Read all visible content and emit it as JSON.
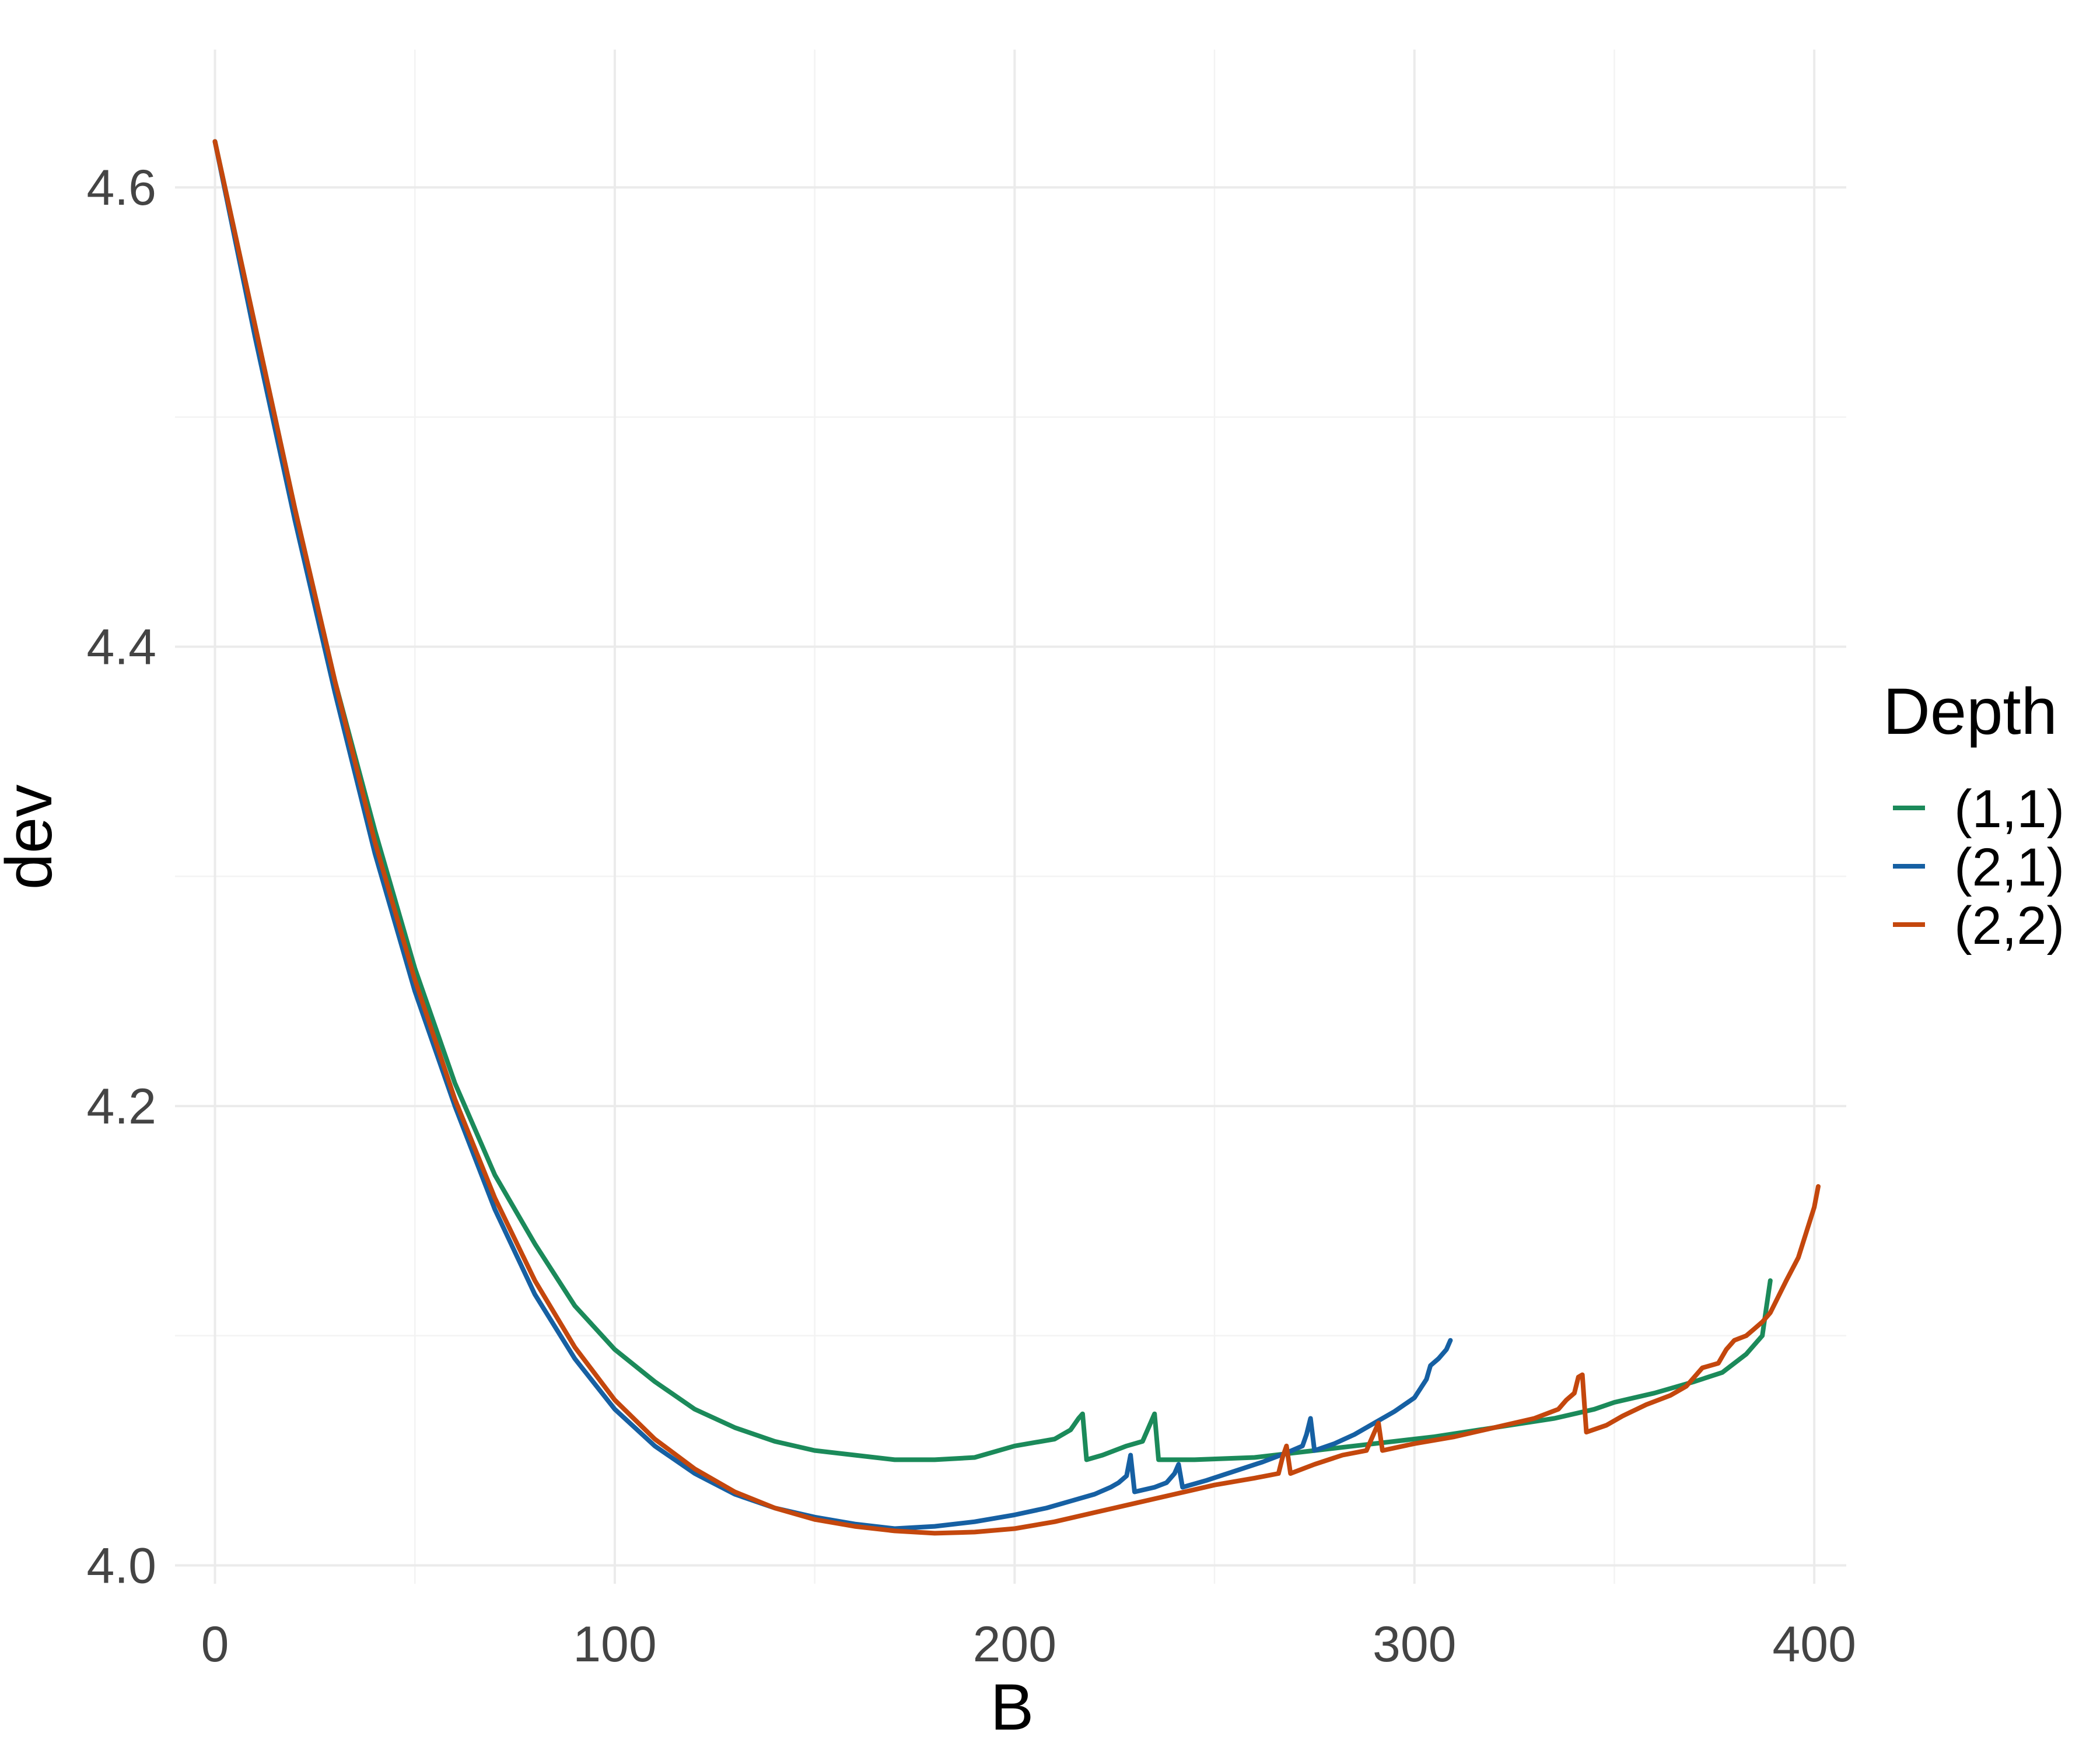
{
  "chart_data": {
    "type": "line",
    "title": "",
    "xlabel": "B",
    "ylabel": "dev",
    "xlim": [
      -10,
      408
    ],
    "ylim": [
      3.992,
      4.66
    ],
    "x_ticks": [
      0,
      100,
      200,
      300,
      400
    ],
    "x_tick_labels": [
      "0",
      "100",
      "200",
      "300",
      "400"
    ],
    "y_ticks": [
      4.0,
      4.2,
      4.4,
      4.6
    ],
    "y_tick_labels": [
      "4.0",
      "4.2",
      "4.4",
      "4.6"
    ],
    "x_minor_ticks": [
      50,
      150,
      250,
      350
    ],
    "y_minor_ticks": [
      4.1,
      4.3,
      4.5
    ],
    "grid": true,
    "legend": {
      "title": "Depth",
      "position": "right"
    },
    "series": [
      {
        "name": "(1,1)",
        "color": "#1b8a5a",
        "points": [
          [
            0,
            4.62
          ],
          [
            10,
            4.54
          ],
          [
            20,
            4.46
          ],
          [
            30,
            4.385
          ],
          [
            40,
            4.32
          ],
          [
            50,
            4.26
          ],
          [
            60,
            4.21
          ],
          [
            70,
            4.17
          ],
          [
            80,
            4.14
          ],
          [
            90,
            4.113
          ],
          [
            100,
            4.094
          ],
          [
            110,
            4.08
          ],
          [
            120,
            4.068
          ],
          [
            130,
            4.06
          ],
          [
            140,
            4.054
          ],
          [
            150,
            4.05
          ],
          [
            160,
            4.048
          ],
          [
            170,
            4.046
          ],
          [
            180,
            4.046
          ],
          [
            190,
            4.047
          ],
          [
            200,
            4.052
          ],
          [
            210,
            4.055
          ],
          [
            214,
            4.059
          ],
          [
            216,
            4.064
          ],
          [
            217,
            4.066
          ],
          [
            218,
            4.046
          ],
          [
            222,
            4.048
          ],
          [
            228,
            4.052
          ],
          [
            232,
            4.054
          ],
          [
            234,
            4.062
          ],
          [
            235,
            4.066
          ],
          [
            236,
            4.046
          ],
          [
            245,
            4.046
          ],
          [
            260,
            4.047
          ],
          [
            275,
            4.05
          ],
          [
            290,
            4.053
          ],
          [
            305,
            4.056
          ],
          [
            320,
            4.06
          ],
          [
            335,
            4.064
          ],
          [
            345,
            4.068
          ],
          [
            350,
            4.071
          ],
          [
            360,
            4.075
          ],
          [
            370,
            4.08
          ],
          [
            377,
            4.084
          ],
          [
            383,
            4.092
          ],
          [
            387,
            4.1
          ],
          [
            388,
            4.112
          ],
          [
            389,
            4.124
          ]
        ]
      },
      {
        "name": "(2,1)",
        "color": "#1660a3",
        "points": [
          [
            0,
            4.62
          ],
          [
            10,
            4.535
          ],
          [
            20,
            4.455
          ],
          [
            30,
            4.38
          ],
          [
            40,
            4.31
          ],
          [
            50,
            4.25
          ],
          [
            60,
            4.2
          ],
          [
            70,
            4.155
          ],
          [
            80,
            4.118
          ],
          [
            90,
            4.09
          ],
          [
            100,
            4.068
          ],
          [
            110,
            4.052
          ],
          [
            120,
            4.04
          ],
          [
            130,
            4.031
          ],
          [
            140,
            4.025
          ],
          [
            150,
            4.021
          ],
          [
            160,
            4.018
          ],
          [
            170,
            4.016
          ],
          [
            180,
            4.017
          ],
          [
            190,
            4.019
          ],
          [
            200,
            4.022
          ],
          [
            208,
            4.025
          ],
          [
            214,
            4.028
          ],
          [
            220,
            4.031
          ],
          [
            224,
            4.034
          ],
          [
            226,
            4.036
          ],
          [
            228,
            4.039
          ],
          [
            229,
            4.048
          ],
          [
            230,
            4.032
          ],
          [
            235,
            4.034
          ],
          [
            238,
            4.036
          ],
          [
            240,
            4.04
          ],
          [
            241,
            4.044
          ],
          [
            242,
            4.034
          ],
          [
            248,
            4.037
          ],
          [
            255,
            4.041
          ],
          [
            262,
            4.045
          ],
          [
            268,
            4.049
          ],
          [
            272,
            4.052
          ],
          [
            273,
            4.057
          ],
          [
            274,
            4.064
          ],
          [
            275,
            4.05
          ],
          [
            280,
            4.053
          ],
          [
            285,
            4.057
          ],
          [
            290,
            4.062
          ],
          [
            295,
            4.067
          ],
          [
            300,
            4.073
          ],
          [
            303,
            4.081
          ],
          [
            304,
            4.087
          ],
          [
            306,
            4.09
          ],
          [
            308,
            4.094
          ],
          [
            309,
            4.098
          ]
        ]
      },
      {
        "name": "(2,2)",
        "color": "#c4470d",
        "points": [
          [
            0,
            4.62
          ],
          [
            10,
            4.54
          ],
          [
            20,
            4.46
          ],
          [
            30,
            4.385
          ],
          [
            40,
            4.315
          ],
          [
            50,
            4.255
          ],
          [
            60,
            4.203
          ],
          [
            70,
            4.16
          ],
          [
            80,
            4.124
          ],
          [
            90,
            4.095
          ],
          [
            100,
            4.072
          ],
          [
            110,
            4.055
          ],
          [
            120,
            4.042
          ],
          [
            130,
            4.032
          ],
          [
            140,
            4.025
          ],
          [
            150,
            4.02
          ],
          [
            160,
            4.017
          ],
          [
            170,
            4.015
          ],
          [
            180,
            4.014
          ],
          [
            190,
            4.0145
          ],
          [
            200,
            4.016
          ],
          [
            210,
            4.019
          ],
          [
            220,
            4.023
          ],
          [
            230,
            4.027
          ],
          [
            240,
            4.031
          ],
          [
            250,
            4.035
          ],
          [
            260,
            4.038
          ],
          [
            266,
            4.04
          ],
          [
            267,
            4.047
          ],
          [
            268,
            4.052
          ],
          [
            269,
            4.04
          ],
          [
            275,
            4.044
          ],
          [
            282,
            4.048
          ],
          [
            288,
            4.05
          ],
          [
            290,
            4.058
          ],
          [
            291,
            4.062
          ],
          [
            292,
            4.05
          ],
          [
            300,
            4.053
          ],
          [
            310,
            4.056
          ],
          [
            320,
            4.06
          ],
          [
            330,
            4.064
          ],
          [
            336,
            4.068
          ],
          [
            338,
            4.072
          ],
          [
            340,
            4.075
          ],
          [
            341,
            4.082
          ],
          [
            342,
            4.083
          ],
          [
            343,
            4.058
          ],
          [
            348,
            4.061
          ],
          [
            352,
            4.065
          ],
          [
            358,
            4.07
          ],
          [
            364,
            4.074
          ],
          [
            368,
            4.078
          ],
          [
            370,
            4.082
          ],
          [
            372,
            4.086
          ],
          [
            376,
            4.088
          ],
          [
            378,
            4.094
          ],
          [
            380,
            4.098
          ],
          [
            383,
            4.1
          ],
          [
            385,
            4.103
          ],
          [
            387,
            4.106
          ],
          [
            389,
            4.11
          ],
          [
            391,
            4.117
          ],
          [
            393,
            4.124
          ],
          [
            396,
            4.134
          ],
          [
            398,
            4.145
          ],
          [
            400,
            4.156
          ],
          [
            401,
            4.165
          ]
        ]
      }
    ]
  }
}
